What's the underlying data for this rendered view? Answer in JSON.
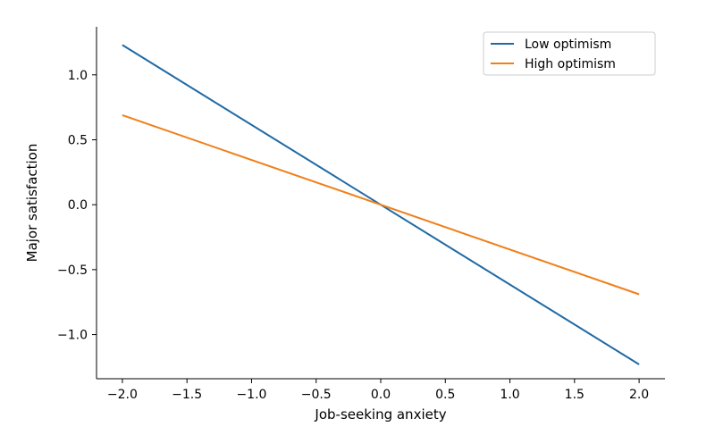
{
  "chart_data": {
    "type": "line",
    "xlabel": "Job-seeking anxiety",
    "ylabel": "Major satisfaction",
    "xlim": [
      -2.2,
      2.2
    ],
    "ylim": [
      -1.34,
      1.37
    ],
    "x_ticks": [
      -2.0,
      -1.5,
      -1.0,
      -0.5,
      0.0,
      0.5,
      1.0,
      1.5,
      2.0
    ],
    "x_tick_labels": [
      "−2.0",
      "−1.5",
      "−1.0",
      "−0.5",
      "0.0",
      "0.5",
      "1.0",
      "1.5",
      "2.0"
    ],
    "y_ticks": [
      -1.0,
      -0.5,
      0.0,
      0.5,
      1.0
    ],
    "y_tick_labels": [
      "−1.0",
      "−0.5",
      "0.0",
      "0.5",
      "1.0"
    ],
    "grid": false,
    "legend_position": "top-right",
    "series": [
      {
        "name": "Low optimism",
        "color": "#1f6aa5",
        "x": [
          -2.0,
          2.0
        ],
        "y": [
          1.23,
          -1.23
        ]
      },
      {
        "name": "High optimism",
        "color": "#f07f1a",
        "x": [
          -2.0,
          2.0
        ],
        "y": [
          0.69,
          -0.69
        ]
      }
    ]
  }
}
